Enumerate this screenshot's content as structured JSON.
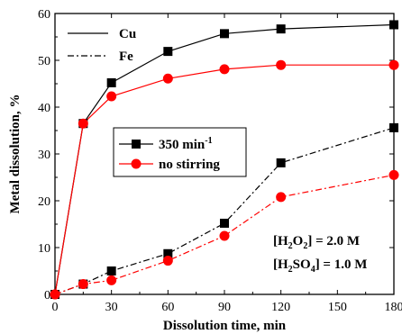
{
  "chart_data": {
    "type": "line",
    "xlabel": "Dissolution time, min",
    "ylabel": "Metal dissolution, %",
    "xlim": [
      0,
      180
    ],
    "ylim": [
      0,
      60
    ],
    "xticks": [
      0,
      30,
      60,
      90,
      120,
      150,
      180
    ],
    "yticks": [
      0,
      10,
      20,
      30,
      40,
      50,
      60
    ],
    "grid": false,
    "series": [
      {
        "metal": "Cu",
        "condition": "350 min-1",
        "color": "#000000",
        "marker": "square",
        "line_style": "solid",
        "x": [
          0,
          15,
          30,
          60,
          90,
          120,
          180
        ],
        "y": [
          0,
          36.5,
          45.2,
          51.9,
          55.7,
          56.7,
          57.6
        ]
      },
      {
        "metal": "Cu",
        "condition": "no stirring",
        "color": "#ff0000",
        "marker": "circle",
        "line_style": "solid",
        "x": [
          0,
          15,
          30,
          60,
          90,
          120,
          180
        ],
        "y": [
          0,
          36.5,
          42.3,
          46.1,
          48.1,
          49.0,
          49.0
        ]
      },
      {
        "metal": "Fe",
        "condition": "350 min-1",
        "color": "#000000",
        "marker": "square",
        "line_style": "dash-dot",
        "x": [
          0,
          15,
          30,
          60,
          90,
          120,
          180
        ],
        "y": [
          0,
          2.2,
          5.0,
          8.7,
          15.2,
          28.1,
          35.6
        ]
      },
      {
        "metal": "Fe",
        "condition": "no stirring",
        "color": "#ff0000",
        "marker": "circle",
        "line_style": "dash-dot",
        "x": [
          0,
          15,
          30,
          60,
          90,
          120,
          180
        ],
        "y": [
          0,
          2.2,
          3.0,
          7.2,
          12.5,
          20.8,
          25.5
        ]
      }
    ],
    "legend_linestyle": {
      "position": "top-left",
      "entries": [
        {
          "label": "Cu",
          "line_style": "solid"
        },
        {
          "label": "Fe",
          "line_style": "dash-dot"
        }
      ]
    },
    "legend_markers": {
      "position": "center-left",
      "entries": [
        {
          "label": "350 min",
          "superscript": "-1",
          "color": "#000000",
          "marker": "square"
        },
        {
          "label": "no stirring",
          "color": "#ff0000",
          "marker": "circle"
        }
      ]
    },
    "annotations": [
      {
        "pre": "[H",
        "sub": "2",
        "mid": "O",
        "sub2": "2",
        "post": "] = 2.0 M"
      },
      {
        "pre": "[H",
        "sub": "2",
        "mid": "SO",
        "sub2": "4",
        "post": "] = 1.0 M"
      }
    ]
  }
}
